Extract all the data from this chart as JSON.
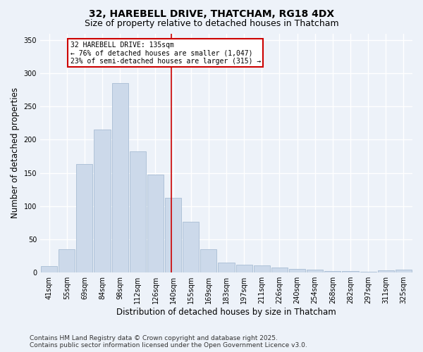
{
  "title_line1": "32, HAREBELL DRIVE, THATCHAM, RG18 4DX",
  "title_line2": "Size of property relative to detached houses in Thatcham",
  "xlabel": "Distribution of detached houses by size in Thatcham",
  "ylabel": "Number of detached properties",
  "categories": [
    "41sqm",
    "55sqm",
    "69sqm",
    "84sqm",
    "98sqm",
    "112sqm",
    "126sqm",
    "140sqm",
    "155sqm",
    "169sqm",
    "183sqm",
    "197sqm",
    "211sqm",
    "226sqm",
    "240sqm",
    "254sqm",
    "268sqm",
    "282sqm",
    "297sqm",
    "311sqm",
    "325sqm"
  ],
  "values": [
    10,
    35,
    163,
    215,
    285,
    183,
    148,
    113,
    77,
    35,
    15,
    12,
    11,
    8,
    5,
    4,
    2,
    2,
    1,
    3,
    4
  ],
  "bar_color": "#ccd9ea",
  "bar_edge_color": "#a8bdd4",
  "vline_x": 6.88,
  "vline_color": "#cc0000",
  "annotation_box_text": "32 HAREBELL DRIVE: 135sqm\n← 76% of detached houses are smaller (1,047)\n23% of semi-detached houses are larger (315) →",
  "ylim": [
    0,
    360
  ],
  "yticks": [
    0,
    50,
    100,
    150,
    200,
    250,
    300,
    350
  ],
  "footer_line1": "Contains HM Land Registry data © Crown copyright and database right 2025.",
  "footer_line2": "Contains public sector information licensed under the Open Government Licence v3.0.",
  "bg_color": "#edf2f9",
  "grid_color": "#ffffff",
  "box_edge_color": "#cc0000",
  "title_fontsize": 10,
  "subtitle_fontsize": 9,
  "tick_fontsize": 7,
  "label_fontsize": 8.5,
  "footer_fontsize": 6.5
}
